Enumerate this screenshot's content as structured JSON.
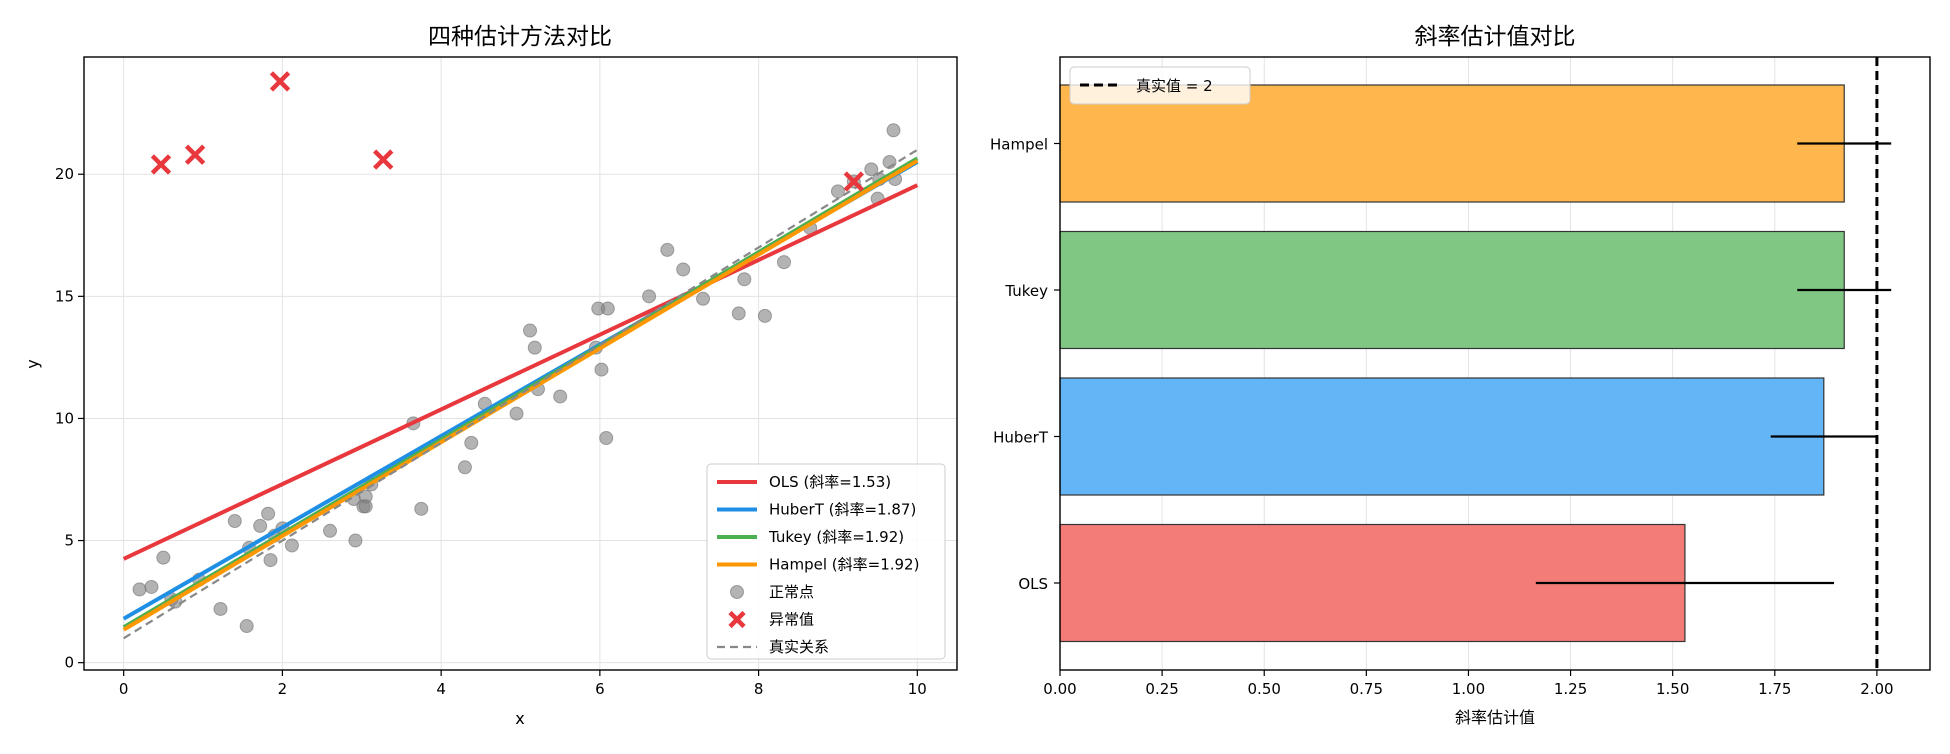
{
  "chart_data": [
    {
      "type": "scatter",
      "title": "四种估计方法对比",
      "xlabel": "x",
      "ylabel": "y",
      "xlim": [
        -0.5,
        10.5
      ],
      "ylim": [
        -0.3,
        24.8
      ],
      "xticks": [
        0,
        2,
        4,
        6,
        8,
        10
      ],
      "yticks": [
        0,
        5,
        10,
        15,
        20
      ],
      "grid": true,
      "legend_position": "bottom-right",
      "normal_points": {
        "name": "正常点",
        "color": "#808080",
        "x": [
          0.2,
          0.35,
          0.5,
          0.6,
          0.65,
          0.95,
          1.22,
          1.4,
          1.55,
          1.58,
          1.72,
          1.82,
          1.85,
          1.9,
          2.0,
          2.12,
          2.6,
          2.9,
          2.92,
          3.02,
          3.05,
          3.05,
          3.12,
          3.65,
          3.75,
          4.3,
          4.38,
          4.55,
          4.95,
          5.12,
          5.18,
          5.22,
          5.5,
          5.95,
          5.98,
          6.02,
          6.08,
          6.1,
          6.62,
          6.85,
          7.05,
          7.3,
          7.75,
          7.82,
          8.08,
          8.32,
          8.65,
          9.0,
          9.2,
          9.42,
          9.5,
          9.52,
          9.65,
          9.7,
          9.72
        ],
        "y": [
          3.0,
          3.1,
          4.3,
          2.6,
          2.5,
          3.4,
          2.2,
          5.8,
          1.5,
          4.7,
          5.6,
          6.1,
          4.2,
          5.2,
          5.5,
          4.8,
          5.4,
          6.7,
          5.0,
          6.4,
          6.8,
          6.4,
          7.3,
          9.8,
          6.3,
          8.0,
          9.0,
          10.6,
          10.2,
          13.6,
          12.9,
          11.2,
          10.9,
          12.9,
          14.5,
          12.0,
          9.2,
          14.5,
          15.0,
          16.9,
          16.1,
          14.9,
          14.3,
          15.7,
          14.2,
          16.4,
          17.8,
          19.3,
          19.7,
          20.2,
          19.0,
          19.8,
          20.5,
          21.8,
          19.8
        ]
      },
      "outliers": {
        "name": "异常值",
        "color": "#e8383d",
        "x": [
          0.47,
          0.9,
          1.97,
          3.27,
          9.2
        ],
        "y": [
          20.4,
          20.8,
          23.8,
          20.6,
          19.7
        ]
      },
      "lines": [
        {
          "name": "OLS (斜率=1.53)",
          "color": "#e8383d",
          "dashed": false,
          "intercept": 4.25,
          "slope": 1.53
        },
        {
          "name": "HuberT (斜率=1.87)",
          "color": "#1f8fe5",
          "dashed": false,
          "intercept": 1.8,
          "slope": 1.87
        },
        {
          "name": "Tukey (斜率=1.92)",
          "color": "#4caf50",
          "dashed": false,
          "intercept": 1.45,
          "slope": 1.92
        },
        {
          "name": "Hampel (斜率=1.92)",
          "color": "#ff9800",
          "dashed": false,
          "intercept": 1.35,
          "slope": 1.92
        },
        {
          "name": "真实关系",
          "color": "#888888",
          "dashed": true,
          "intercept": 1.0,
          "slope": 2.0
        }
      ],
      "legend_order": [
        "OLS (斜率=1.53)",
        "HuberT (斜率=1.87)",
        "Tukey (斜率=1.92)",
        "Hampel (斜率=1.92)",
        "正常点",
        "异常值",
        "真实关系"
      ]
    },
    {
      "type": "bar",
      "orientation": "horizontal",
      "title": "斜率估计值对比",
      "xlabel": "斜率估计值",
      "ylabel": "",
      "xlim": [
        0,
        2.13
      ],
      "xticks": [
        "0.00",
        "0.25",
        "0.50",
        "0.75",
        "1.00",
        "1.25",
        "1.50",
        "1.75",
        "2.00"
      ],
      "grid": true,
      "legend_position": "top-left",
      "categories": [
        "OLS",
        "HuberT",
        "Tukey",
        "Hampel"
      ],
      "values": [
        1.53,
        1.87,
        1.92,
        1.92
      ],
      "errors": [
        0.365,
        0.13,
        0.115,
        0.115
      ],
      "colors": [
        "#f47c76",
        "#64b5f6",
        "#81c784",
        "#ffb74d"
      ],
      "reference_line": {
        "value": 2,
        "label": "真实值 = 2"
      }
    }
  ]
}
